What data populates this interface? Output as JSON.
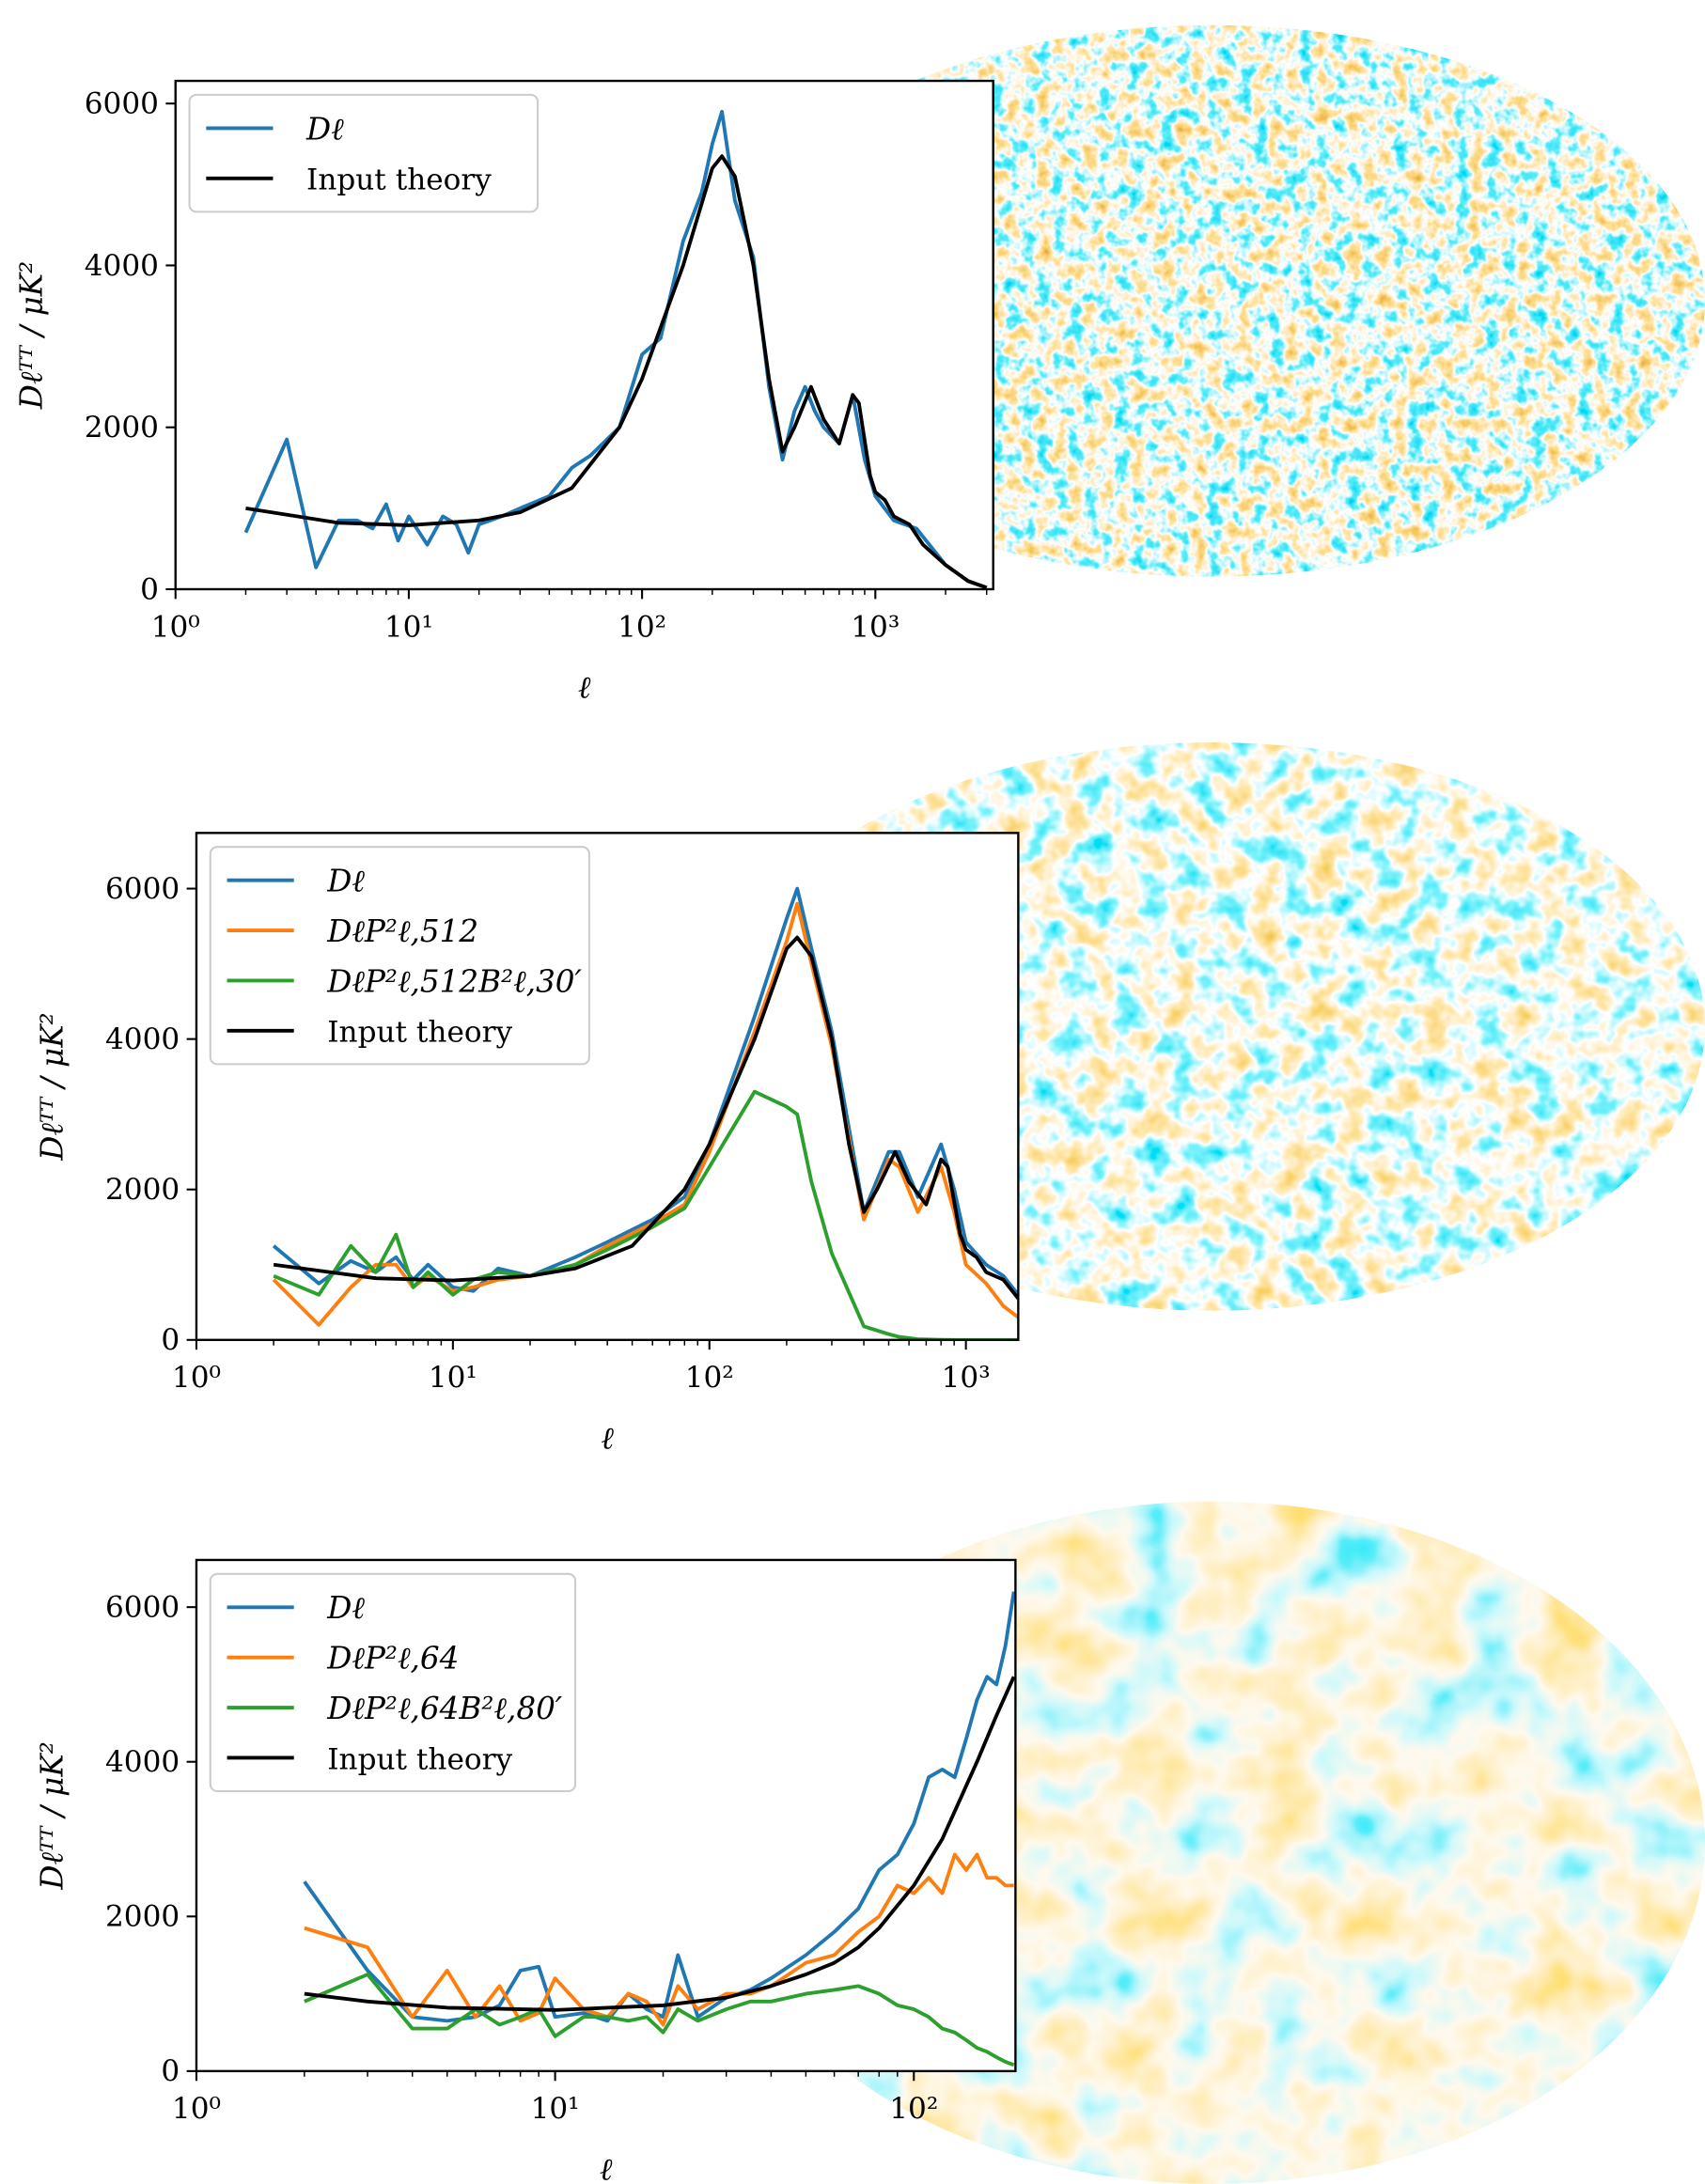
{
  "chart_data": [
    {
      "type": "line",
      "x_label": "ℓ",
      "y_label": "Dℓᵀᵀ / μK²",
      "log_x": true,
      "legend": "upper left",
      "xlim": [
        1,
        3200
      ],
      "ylim": [
        0,
        6280
      ],
      "xticks": [
        {
          "value": 1,
          "label": "10⁰"
        },
        {
          "value": 10,
          "label": "10¹"
        },
        {
          "value": 100,
          "label": "10²"
        },
        {
          "value": 1000,
          "label": "10³"
        }
      ],
      "yticks": [
        0,
        2000,
        4000,
        6000
      ],
      "series": [
        {
          "name": "Dℓ",
          "color": "#1f77b4",
          "x": [
            2,
            3,
            4,
            5,
            6,
            7,
            8,
            9,
            10,
            12,
            14,
            16,
            18,
            20,
            25,
            30,
            40,
            50,
            60,
            80,
            100,
            120,
            150,
            180,
            200,
            220,
            250,
            300,
            350,
            400,
            450,
            500,
            550,
            600,
            700,
            800,
            900,
            1000,
            1200,
            1500,
            2000,
            2500,
            3000
          ],
          "values": [
            700,
            1850,
            270,
            850,
            850,
            750,
            1050,
            600,
            900,
            550,
            900,
            800,
            450,
            800,
            900,
            1000,
            1150,
            1500,
            1650,
            2000,
            2900,
            3100,
            4300,
            4900,
            5500,
            5900,
            4800,
            4100,
            2500,
            1600,
            2200,
            2500,
            2200,
            2000,
            1800,
            2400,
            1600,
            1150,
            850,
            750,
            300,
            100,
            20
          ]
        },
        {
          "name": "Input theory",
          "color": "#000000",
          "x": [
            2,
            5,
            10,
            20,
            30,
            50,
            80,
            100,
            150,
            200,
            220,
            250,
            300,
            350,
            400,
            450,
            530,
            600,
            700,
            800,
            850,
            950,
            1000,
            1100,
            1200,
            1400,
            1600,
            2000,
            2500,
            3000
          ],
          "values": [
            1000,
            820,
            790,
            850,
            950,
            1250,
            2000,
            2600,
            4000,
            5200,
            5350,
            5100,
            4000,
            2600,
            1700,
            2000,
            2500,
            2100,
            1800,
            2400,
            2300,
            1400,
            1200,
            1100,
            900,
            800,
            550,
            300,
            100,
            20
          ]
        }
      ]
    },
    {
      "type": "line",
      "x_label": "ℓ",
      "y_label": "Dℓᵀᵀ / μK²",
      "log_x": true,
      "legend": "upper left",
      "xlim": [
        1,
        1600
      ],
      "ylim": [
        0,
        6740
      ],
      "xticks": [
        {
          "value": 1,
          "label": "10⁰"
        },
        {
          "value": 10,
          "label": "10¹"
        },
        {
          "value": 100,
          "label": "10²"
        },
        {
          "value": 1000,
          "label": "10³"
        }
      ],
      "yticks": [
        0,
        2000,
        4000,
        6000
      ],
      "series": [
        {
          "name": "Dℓ",
          "color": "#1f77b4",
          "x": [
            2,
            3,
            4,
            5,
            6,
            7,
            8,
            10,
            12,
            15,
            20,
            30,
            40,
            60,
            80,
            100,
            150,
            200,
            220,
            250,
            300,
            400,
            500,
            550,
            650,
            800,
            900,
            1000,
            1200,
            1400,
            1600
          ],
          "values": [
            1250,
            750,
            1050,
            900,
            1100,
            800,
            1000,
            700,
            650,
            950,
            850,
            1100,
            1300,
            1600,
            1900,
            2600,
            4300,
            5600,
            6000,
            5200,
            4100,
            1700,
            2500,
            2500,
            1900,
            2600,
            2000,
            1300,
            1000,
            850,
            600
          ]
        },
        {
          "name": "DℓP²ℓ,512",
          "color": "#ff7f0e",
          "x": [
            2,
            3,
            4,
            5,
            6,
            7,
            8,
            10,
            12,
            15,
            20,
            30,
            40,
            60,
            80,
            100,
            150,
            200,
            220,
            250,
            300,
            400,
            500,
            550,
            650,
            800,
            900,
            1000,
            1200,
            1400,
            1600
          ],
          "values": [
            800,
            200,
            700,
            1000,
            1000,
            700,
            850,
            650,
            700,
            800,
            850,
            1000,
            1250,
            1550,
            1800,
            2500,
            4100,
            5300,
            5800,
            5000,
            3900,
            1600,
            2400,
            2300,
            1700,
            2300,
            1700,
            1000,
            750,
            450,
            300
          ]
        },
        {
          "name": "DℓP²ℓ,512B²ℓ,30′",
          "color": "#2ca02c",
          "x": [
            2,
            3,
            4,
            5,
            6,
            7,
            8,
            10,
            12,
            15,
            20,
            30,
            40,
            60,
            80,
            100,
            150,
            200,
            220,
            250,
            300,
            400,
            500,
            550,
            650,
            800,
            900,
            1000,
            1200,
            1400,
            1600
          ],
          "values": [
            850,
            600,
            1250,
            900,
            1400,
            700,
            900,
            600,
            800,
            900,
            850,
            1000,
            1200,
            1500,
            1750,
            2300,
            3300,
            3100,
            3000,
            2100,
            1150,
            180,
            77,
            40,
            10,
            2,
            0,
            0,
            0,
            0,
            0
          ]
        },
        {
          "name": "Input theory",
          "color": "#000000",
          "x": [
            2,
            5,
            10,
            20,
            30,
            50,
            80,
            100,
            150,
            200,
            220,
            250,
            300,
            350,
            400,
            450,
            530,
            600,
            700,
            800,
            850,
            950,
            1000,
            1100,
            1200,
            1400,
            1600
          ],
          "values": [
            1000,
            820,
            790,
            850,
            950,
            1250,
            2000,
            2600,
            4000,
            5200,
            5350,
            5100,
            4000,
            2600,
            1700,
            2000,
            2500,
            2100,
            1800,
            2400,
            2300,
            1400,
            1200,
            1100,
            900,
            800,
            550
          ]
        }
      ]
    },
    {
      "type": "line",
      "x_label": "ℓ",
      "y_label": "Dℓᵀᵀ / μK²",
      "log_x": true,
      "legend": "upper left",
      "xlim": [
        1,
        192
      ],
      "ylim": [
        0,
        6610
      ],
      "xticks": [
        {
          "value": 1,
          "label": "10⁰"
        },
        {
          "value": 10,
          "label": "10¹"
        },
        {
          "value": 100,
          "label": "10²"
        }
      ],
      "yticks": [
        0,
        2000,
        4000,
        6000
      ],
      "series": [
        {
          "name": "Dℓ",
          "color": "#1f77b4",
          "x": [
            2,
            3,
            4,
            5,
            6,
            7,
            8,
            9,
            10,
            12,
            14,
            16,
            18,
            20,
            22,
            25,
            30,
            35,
            40,
            50,
            60,
            70,
            80,
            90,
            100,
            110,
            120,
            130,
            140,
            150,
            160,
            170,
            180,
            190
          ],
          "values": [
            2450,
            1300,
            700,
            650,
            700,
            850,
            1300,
            1350,
            700,
            750,
            650,
            1000,
            800,
            700,
            1500,
            700,
            950,
            1050,
            1200,
            1500,
            1800,
            2100,
            2600,
            2800,
            3200,
            3800,
            3900,
            3800,
            4300,
            4800,
            5100,
            5000,
            5500,
            6200
          ]
        },
        {
          "name": "DℓP²ℓ,64",
          "color": "#ff7f0e",
          "x": [
            2,
            3,
            4,
            5,
            6,
            7,
            8,
            9,
            10,
            12,
            14,
            16,
            18,
            20,
            22,
            25,
            30,
            35,
            40,
            50,
            60,
            70,
            80,
            90,
            100,
            110,
            120,
            130,
            140,
            150,
            160,
            170,
            180,
            190
          ],
          "values": [
            1850,
            1600,
            700,
            1300,
            700,
            1100,
            650,
            750,
            1200,
            800,
            700,
            1000,
            900,
            600,
            1100,
            800,
            1000,
            1000,
            1100,
            1400,
            1500,
            1800,
            2000,
            2400,
            2300,
            2500,
            2300,
            2800,
            2600,
            2800,
            2500,
            2500,
            2400,
            2400
          ]
        },
        {
          "name": "DℓP²ℓ,64B²ℓ,80′",
          "color": "#2ca02c",
          "x": [
            2,
            3,
            4,
            5,
            6,
            7,
            8,
            9,
            10,
            12,
            14,
            16,
            18,
            20,
            22,
            25,
            30,
            35,
            40,
            50,
            60,
            70,
            80,
            90,
            100,
            110,
            120,
            130,
            140,
            150,
            160,
            170,
            180,
            190
          ],
          "values": [
            900,
            1250,
            550,
            550,
            800,
            600,
            700,
            800,
            450,
            700,
            700,
            650,
            700,
            500,
            800,
            650,
            800,
            900,
            900,
            1000,
            1050,
            1100,
            1000,
            850,
            800,
            700,
            550,
            500,
            400,
            300,
            250,
            180,
            120,
            80
          ]
        },
        {
          "name": "Input theory",
          "color": "#000000",
          "x": [
            2,
            3,
            5,
            10,
            20,
            30,
            40,
            50,
            60,
            70,
            80,
            100,
            120,
            150,
            170,
            190
          ],
          "values": [
            1000,
            900,
            820,
            790,
            850,
            950,
            1100,
            1250,
            1400,
            1600,
            1850,
            2400,
            3000,
            4000,
            4600,
            5100
          ]
        }
      ]
    }
  ]
}
